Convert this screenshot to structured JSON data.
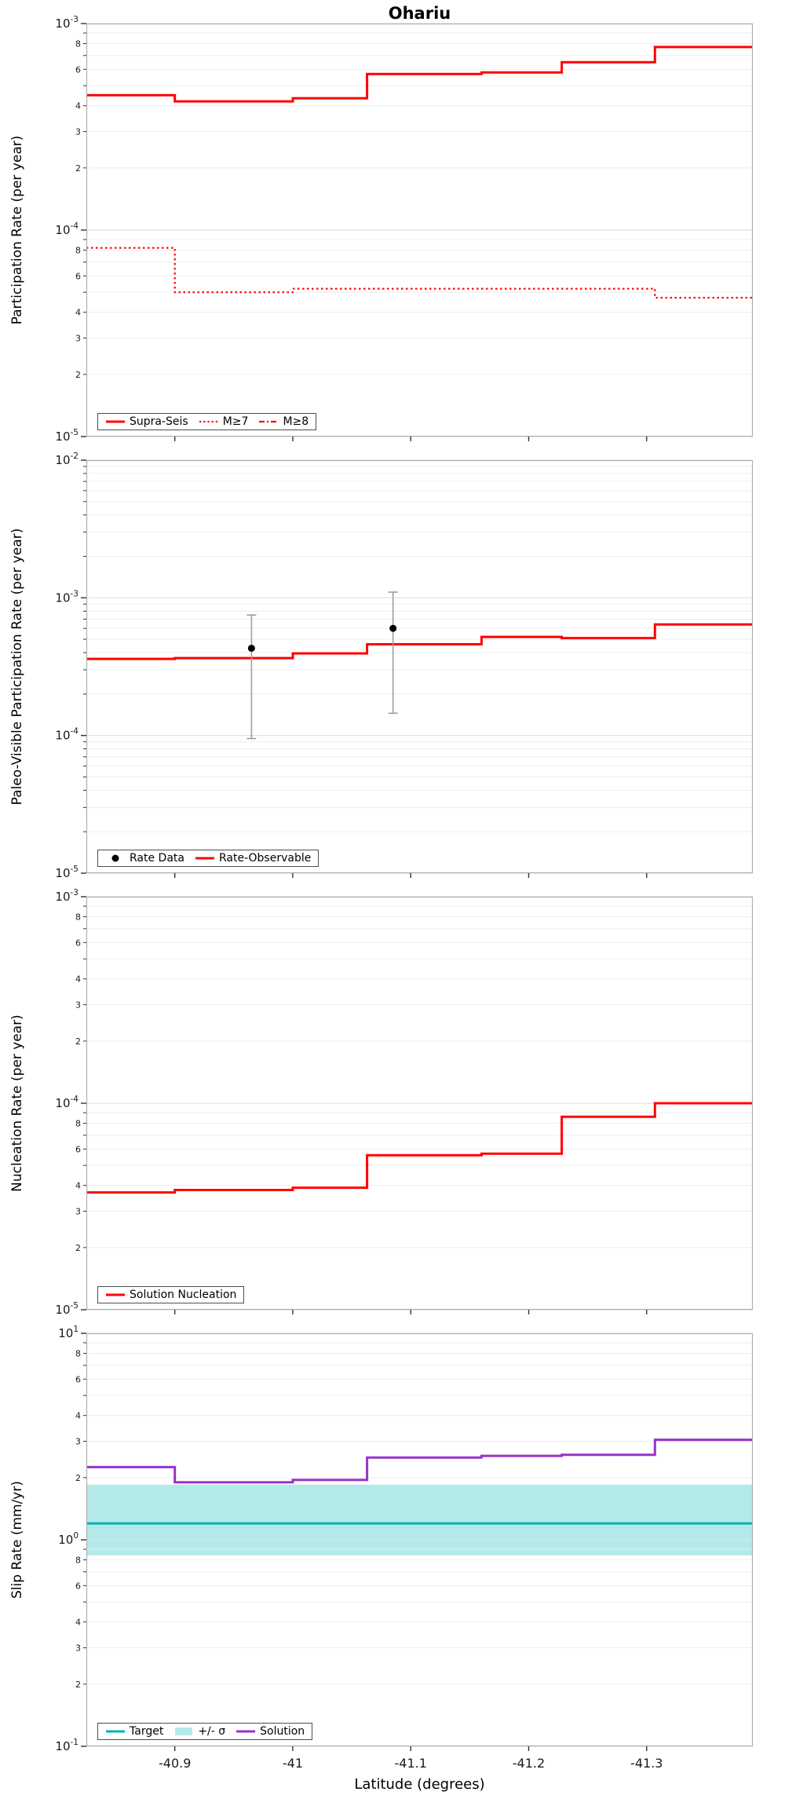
{
  "title": "Ohariu",
  "xlabel": "Latitude (degrees)",
  "x_range": [
    -40.825,
    -41.39
  ],
  "x_ticks": [
    {
      "value": -40.9,
      "label": "-40.9"
    },
    {
      "value": -41.0,
      "label": "-41"
    },
    {
      "value": -41.1,
      "label": "-41.1"
    },
    {
      "value": -41.2,
      "label": "-41.2"
    },
    {
      "value": -41.3,
      "label": "-41.3"
    }
  ],
  "colors": {
    "red": "#ff0000",
    "purple": "#9932cc",
    "teal": "#00b3b3",
    "band": "#b4e9e9",
    "black": "#000000",
    "error_bar": "#9e9e9e",
    "grid_minor": "#ededed",
    "grid_major": "#e0e0e0",
    "frame": "#b0b0b0",
    "tick": "#333333",
    "text": "#1a1a1a"
  },
  "chart_data": [
    {
      "type": "line",
      "title": "Ohariu",
      "ylabel": "Participation Rate (per year)",
      "ylim": [
        1e-05,
        0.001
      ],
      "y_major_exps": [
        -3,
        -4,
        -5
      ],
      "y_minor_labels": [
        8,
        6,
        4,
        3,
        2
      ],
      "show_minor_labels": true,
      "show_x_labels": false,
      "legend": [
        {
          "label": "Supra-Seis",
          "swatch": "solid",
          "color": "red"
        },
        {
          "label": "M≥7",
          "swatch": "dotted",
          "color": "red"
        },
        {
          "label": "M≥8",
          "swatch": "dashdot",
          "color": "red"
        }
      ],
      "series": [
        {
          "name": "Supra-Seis",
          "style": "solid",
          "color": "red",
          "width": 3,
          "steps": [
            {
              "x0": -40.825,
              "x1": -40.9,
              "y": 0.00045
            },
            {
              "x0": -40.9,
              "x1": -41.0,
              "y": 0.00042
            },
            {
              "x0": -41.0,
              "x1": -41.063,
              "y": 0.000435
            },
            {
              "x0": -41.063,
              "x1": -41.16,
              "y": 0.00057
            },
            {
              "x0": -41.16,
              "x1": -41.228,
              "y": 0.00058
            },
            {
              "x0": -41.228,
              "x1": -41.307,
              "y": 0.00065
            },
            {
              "x0": -41.307,
              "x1": -41.39,
              "y": 0.00077
            }
          ]
        },
        {
          "name": "M≥7",
          "style": "dotted",
          "color": "red",
          "width": 2.2,
          "steps": [
            {
              "x0": -40.825,
              "x1": -40.9,
              "y": 8.2e-05
            },
            {
              "x0": -40.9,
              "x1": -41.0,
              "y": 5e-05
            },
            {
              "x0": -41.0,
              "x1": -41.307,
              "y": 5.2e-05
            },
            {
              "x0": -41.307,
              "x1": -41.39,
              "y": 4.7e-05
            }
          ]
        },
        {
          "name": "M≥8",
          "style": "dashdot",
          "color": "red",
          "width": 2.2,
          "steps": []
        }
      ]
    },
    {
      "type": "line",
      "ylabel": "Paleo-Visible Participation Rate (per year)",
      "ylim": [
        1e-05,
        0.01
      ],
      "y_major_exps": [
        -2,
        -3,
        -4,
        -5
      ],
      "y_minor_labels": [
        8,
        6,
        4,
        3,
        2
      ],
      "show_minor_labels": false,
      "show_x_labels": false,
      "legend": [
        {
          "label": "Rate Data",
          "swatch": "dot",
          "color": "black"
        },
        {
          "label": "Rate-Observable",
          "swatch": "solid",
          "color": "red"
        }
      ],
      "series": [
        {
          "name": "Rate-Observable",
          "style": "solid",
          "color": "red",
          "width": 3,
          "steps": [
            {
              "x0": -40.825,
              "x1": -40.9,
              "y": 0.00036
            },
            {
              "x0": -40.9,
              "x1": -41.0,
              "y": 0.000365
            },
            {
              "x0": -41.0,
              "x1": -41.063,
              "y": 0.000395
            },
            {
              "x0": -41.063,
              "x1": -41.16,
              "y": 0.00046
            },
            {
              "x0": -41.16,
              "x1": -41.228,
              "y": 0.00052
            },
            {
              "x0": -41.228,
              "x1": -41.307,
              "y": 0.00051
            },
            {
              "x0": -41.307,
              "x1": -41.39,
              "y": 0.00064
            }
          ]
        }
      ],
      "points": [
        {
          "x": -40.965,
          "y": 0.00043,
          "y_lo": 9.5e-05,
          "y_hi": 0.00075
        },
        {
          "x": -41.085,
          "y": 0.0006,
          "y_lo": 0.000145,
          "y_hi": 0.0011
        }
      ]
    },
    {
      "type": "line",
      "ylabel": "Nucleation Rate (per year)",
      "ylim": [
        1e-05,
        0.001
      ],
      "y_major_exps": [
        -3,
        -4,
        -5
      ],
      "y_minor_labels": [
        8,
        6,
        4,
        3,
        2
      ],
      "show_minor_labels": true,
      "show_x_labels": false,
      "legend": [
        {
          "label": "Solution Nucleation",
          "swatch": "solid",
          "color": "red"
        }
      ],
      "series": [
        {
          "name": "Solution Nucleation",
          "style": "solid",
          "color": "red",
          "width": 3,
          "steps": [
            {
              "x0": -40.825,
              "x1": -40.9,
              "y": 3.7e-05
            },
            {
              "x0": -40.9,
              "x1": -41.0,
              "y": 3.8e-05
            },
            {
              "x0": -41.0,
              "x1": -41.063,
              "y": 3.9e-05
            },
            {
              "x0": -41.063,
              "x1": -41.16,
              "y": 5.6e-05
            },
            {
              "x0": -41.16,
              "x1": -41.228,
              "y": 5.7e-05
            },
            {
              "x0": -41.228,
              "x1": -41.307,
              "y": 8.6e-05
            },
            {
              "x0": -41.307,
              "x1": -41.39,
              "y": 0.0001
            }
          ]
        }
      ]
    },
    {
      "type": "line",
      "ylabel": "Slip Rate (mm/yr)",
      "ylim": [
        0.1,
        10
      ],
      "y_major_exps": [
        1,
        0,
        -1
      ],
      "y_minor_labels": [
        8,
        6,
        4,
        3,
        2
      ],
      "show_minor_labels": true,
      "show_x_labels": true,
      "hline": {
        "y": 1.2,
        "color": "teal",
        "width": 3
      },
      "band": {
        "y_lo": 0.84,
        "y_hi": 1.85,
        "color": "band"
      },
      "legend": [
        {
          "label": "Target",
          "swatch": "solid",
          "color": "teal"
        },
        {
          "label": "+/- σ",
          "swatch": "patch",
          "color": "band"
        },
        {
          "label": "Solution",
          "swatch": "solid",
          "color": "purple"
        }
      ],
      "series": [
        {
          "name": "Solution",
          "style": "solid",
          "color": "purple",
          "width": 3,
          "steps": [
            {
              "x0": -40.825,
              "x1": -40.9,
              "y": 2.25
            },
            {
              "x0": -40.9,
              "x1": -41.0,
              "y": 1.9
            },
            {
              "x0": -41.0,
              "x1": -41.063,
              "y": 1.95
            },
            {
              "x0": -41.063,
              "x1": -41.16,
              "y": 2.5
            },
            {
              "x0": -41.16,
              "x1": -41.228,
              "y": 2.55
            },
            {
              "x0": -41.228,
              "x1": -41.307,
              "y": 2.58
            },
            {
              "x0": -41.307,
              "x1": -41.39,
              "y": 3.05
            }
          ]
        }
      ]
    }
  ]
}
